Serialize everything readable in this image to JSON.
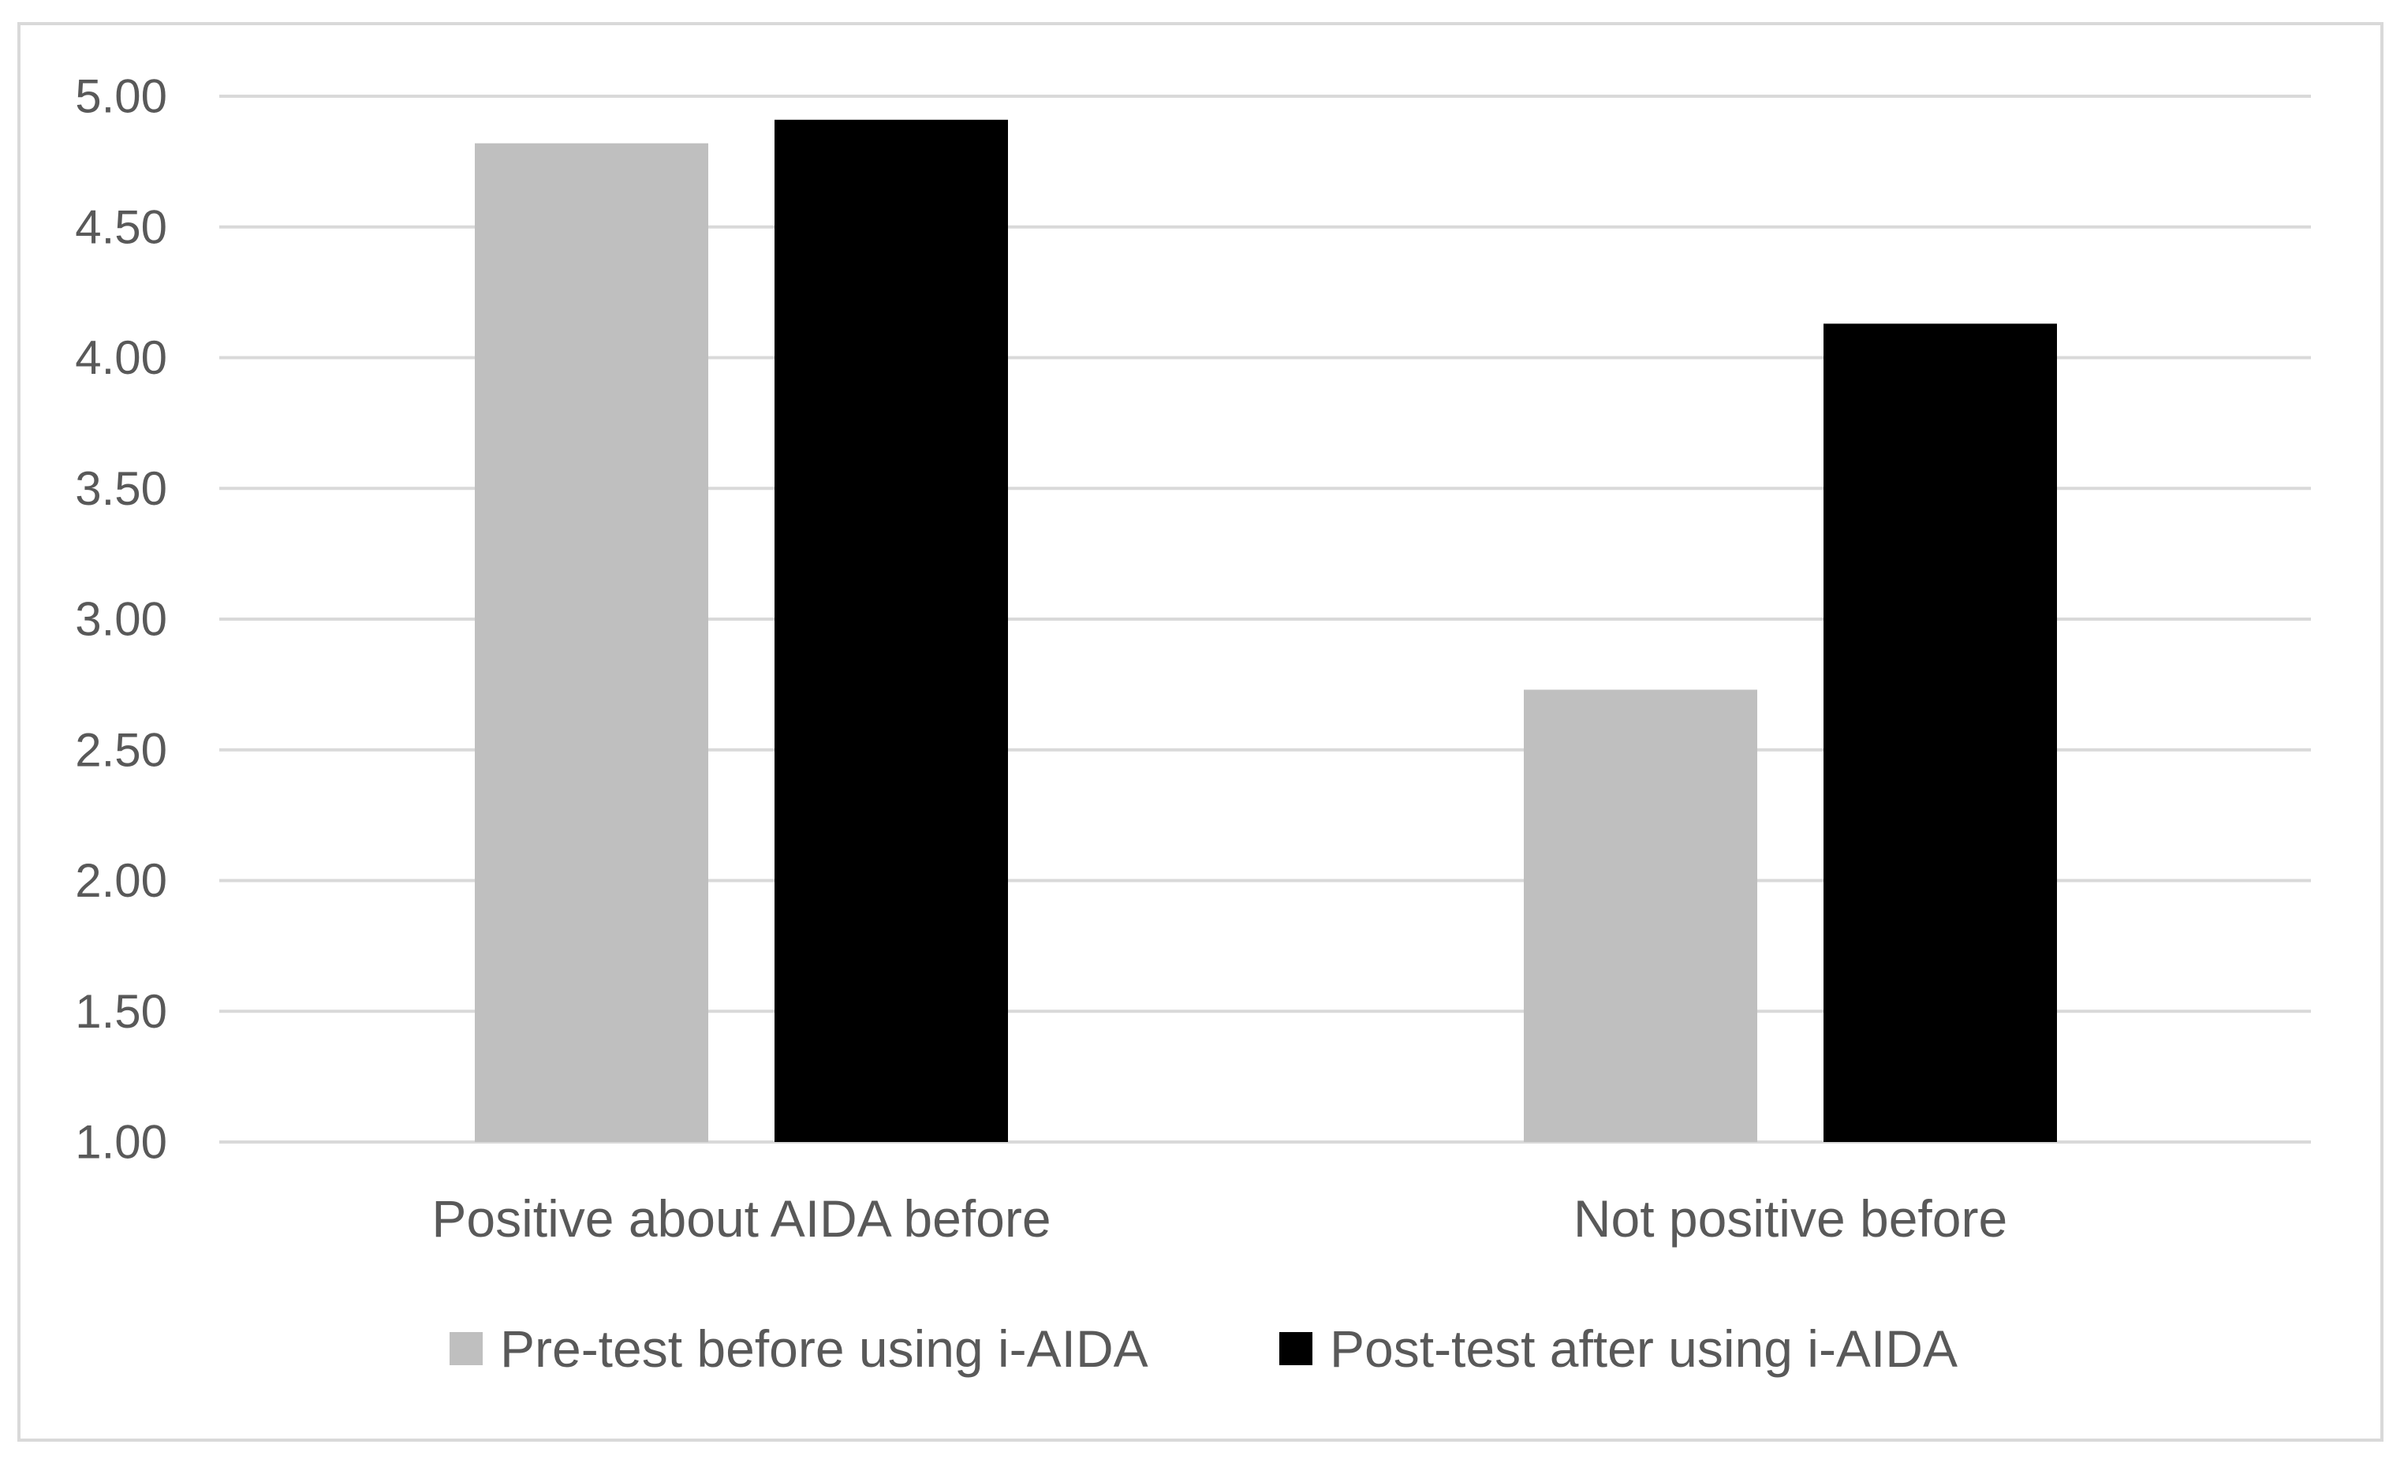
{
  "chart_data": {
    "type": "bar",
    "title": "",
    "xlabel": "",
    "ylabel": "",
    "categories": [
      "Positive about AIDA before",
      "Not positive before"
    ],
    "series": [
      {
        "name": "Pre-test before using i-AIDA",
        "color": "#bfbfbf",
        "values": [
          4.82,
          2.73
        ]
      },
      {
        "name": "Post-test after using i-AIDA",
        "color": "#000000",
        "values": [
          4.91,
          4.13
        ]
      }
    ],
    "ylim": [
      1.0,
      5.0
    ],
    "yticks": [
      "1.00",
      "1.50",
      "2.00",
      "2.50",
      "3.00",
      "3.50",
      "4.00",
      "4.50",
      "5.00"
    ],
    "grid": true,
    "gridline_color": "#d9d9d9",
    "legend_position": "bottom"
  }
}
